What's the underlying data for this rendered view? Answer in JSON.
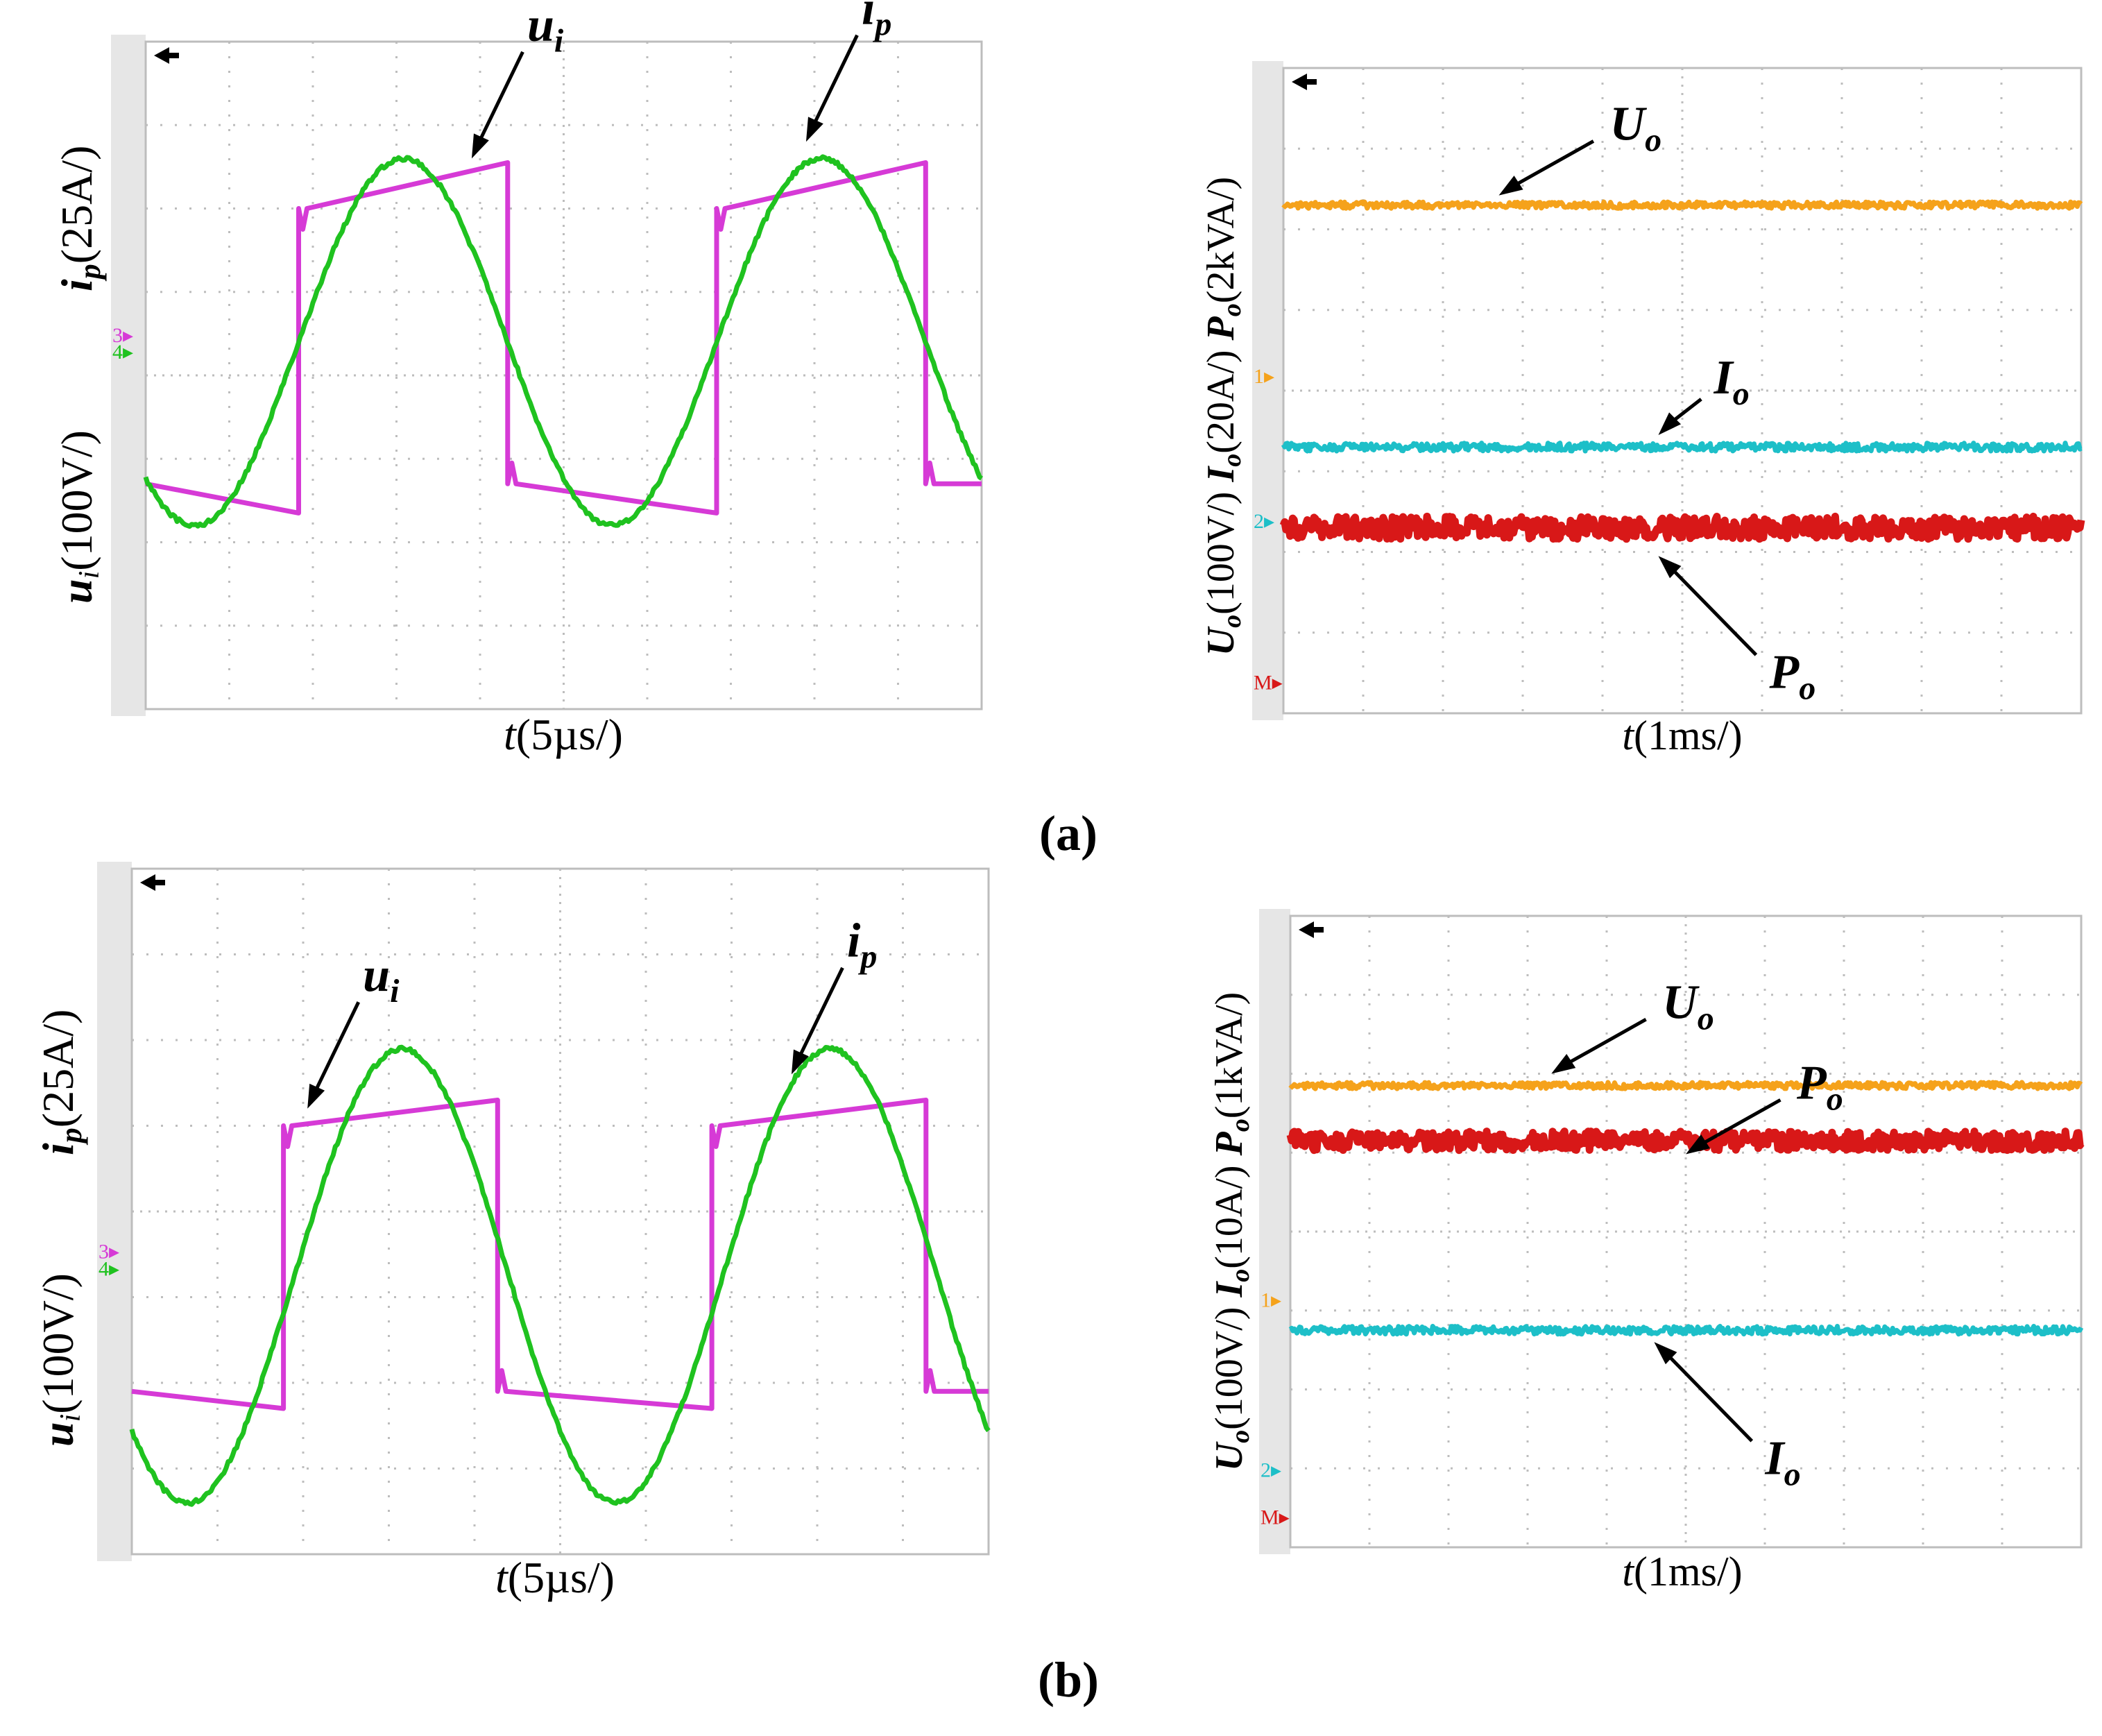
{
  "colors": {
    "magenta": "#d63ad6",
    "green": "#1fc21f",
    "orange": "#f5a21b",
    "cyan": "#1dbfc8",
    "red": "#d81818",
    "grid": "#bdbdbd",
    "strip": "#e6e6e6"
  },
  "figure": {
    "labels": {
      "a": "(a)",
      "b": "(b)"
    }
  },
  "chart_data": [
    {
      "id": "a-left",
      "type": "line",
      "title": "",
      "xlabel": {
        "var": "t",
        "unit": "(5µs/)"
      },
      "ylabel": {
        "lower_var": "u",
        "lower_sub": "i",
        "lower_unit": "(100V/)",
        "upper_var": "i",
        "upper_sub": "p",
        "upper_unit": "(25A/)"
      },
      "xlim": [
        0,
        10
      ],
      "ylim": [
        -4,
        4
      ],
      "divisions": {
        "x": 10,
        "y": 8
      },
      "grid": true,
      "markers": [
        {
          "text": "3",
          "color": "#d63ad6",
          "level": 0.5
        },
        {
          "text": "4",
          "color": "#1fc21f",
          "level": 0.3
        }
      ],
      "series": [
        {
          "name": "u_i",
          "color": "#d63ad6",
          "shape": "square",
          "x": [
            0,
            1.83,
            1.83,
            4.33,
            4.33,
            6.83,
            6.83,
            9.33,
            9.33,
            10
          ],
          "y": [
            -1.3,
            -1.65,
            2.0,
            2.55,
            -1.3,
            -1.65,
            2.0,
            2.55,
            -1.3,
            -1.3
          ]
        },
        {
          "name": "i_p",
          "color": "#1fc21f",
          "shape": "sine",
          "amplitude": 2.2,
          "offset": 0.4,
          "period": 5.0,
          "zero_crossing": 1.83
        }
      ],
      "annotations": [
        {
          "text": "u",
          "sub": "i",
          "target": "u_i",
          "pointer": [
            3.9,
            2.6
          ]
        },
        {
          "text": "i",
          "sub": "p",
          "target": "i_p",
          "pointer": [
            7.9,
            2.8
          ]
        }
      ]
    },
    {
      "id": "a-right",
      "type": "line",
      "title": "",
      "xlabel": {
        "var": "t",
        "unit": "(1ms/)"
      },
      "ylabel": {
        "u1": "U",
        "s1": "o",
        "v1": "(100V/) ",
        "u2": "I",
        "s2": "o",
        "v2": "(20A/) ",
        "u3": "P",
        "s3": "o",
        "v3": "(2kVA/)"
      },
      "xlim": [
        0,
        10
      ],
      "ylim": [
        -4,
        4
      ],
      "divisions": {
        "x": 10,
        "y": 8
      },
      "grid": true,
      "markers": [
        {
          "text": "1",
          "color": "#f5a21b",
          "level": 0.2
        },
        {
          "text": "2",
          "color": "#1dbfc8",
          "level": -1.6
        },
        {
          "text": "M",
          "color": "#d81818",
          "level": -3.6
        }
      ],
      "series": [
        {
          "name": "U_o",
          "color": "#f5a21b",
          "level": 2.3,
          "noise": 0.04
        },
        {
          "name": "I_o",
          "color": "#1dbfc8",
          "level": -0.7,
          "noise": 0.05
        },
        {
          "name": "P_o",
          "color": "#d81818",
          "level": -1.7,
          "noise": 0.14
        }
      ],
      "annotations": [
        {
          "text": "U",
          "sub": "o",
          "target": "U_o",
          "pointer": [
            2.7,
            2.42
          ]
        },
        {
          "text": "I",
          "sub": "o",
          "target": "I_o",
          "pointer": [
            4.7,
            -0.55
          ]
        },
        {
          "text": "P",
          "sub": "o",
          "target": "P_o",
          "pointer": [
            4.7,
            -2.05
          ]
        }
      ]
    },
    {
      "id": "b-left",
      "type": "line",
      "title": "",
      "xlabel": {
        "var": "t",
        "unit": "(5µs/)"
      },
      "ylabel": {
        "lower_var": "u",
        "lower_sub": "i",
        "lower_unit": "(100V/)",
        "upper_var": "i",
        "upper_sub": "p",
        "upper_unit": "(25A/)"
      },
      "xlim": [
        0,
        10
      ],
      "ylim": [
        -4,
        4
      ],
      "divisions": {
        "x": 10,
        "y": 8
      },
      "grid": true,
      "markers": [
        {
          "text": "3",
          "color": "#d63ad6",
          "level": -0.45
        },
        {
          "text": "4",
          "color": "#1fc21f",
          "level": -0.65
        }
      ],
      "series": [
        {
          "name": "u_i",
          "color": "#d63ad6",
          "shape": "square",
          "x": [
            0,
            1.77,
            1.77,
            4.27,
            4.27,
            6.77,
            6.77,
            9.27,
            9.27,
            10
          ],
          "y": [
            -2.1,
            -2.3,
            1.0,
            1.3,
            -2.1,
            -2.3,
            1.0,
            1.3,
            -2.1,
            -2.1
          ]
        },
        {
          "name": "i_p",
          "color": "#1fc21f",
          "shape": "sine",
          "amplitude": 2.65,
          "offset": -0.75,
          "period": 5.0,
          "zero_crossing": 1.9
        }
      ],
      "annotations": [
        {
          "text": "u",
          "sub": "i",
          "target": "u_i",
          "pointer": [
            2.05,
            1.2
          ]
        },
        {
          "text": "i",
          "sub": "p",
          "target": "i_p",
          "pointer": [
            7.7,
            1.6
          ]
        }
      ]
    },
    {
      "id": "b-right",
      "type": "line",
      "title": "",
      "xlabel": {
        "var": "t",
        "unit": "(1ms/)"
      },
      "ylabel": {
        "u1": "U",
        "s1": "o",
        "v1": "(100V/) ",
        "u2": "I",
        "s2": "o",
        "v2": "(10A/) ",
        "u3": "P",
        "s3": "o",
        "v3": "(1kVA/)"
      },
      "xlim": [
        0,
        10
      ],
      "ylim": [
        -4,
        4
      ],
      "divisions": {
        "x": 10,
        "y": 8
      },
      "grid": true,
      "markers": [
        {
          "text": "1",
          "color": "#f5a21b",
          "level": -0.85
        },
        {
          "text": "2",
          "color": "#1dbfc8",
          "level": -3.0
        },
        {
          "text": "M",
          "color": "#d81818",
          "level": -3.6
        }
      ],
      "series": [
        {
          "name": "U_o",
          "color": "#f5a21b",
          "level": 1.85,
          "noise": 0.04
        },
        {
          "name": "P_o",
          "color": "#d81818",
          "level": 1.15,
          "noise": 0.12
        },
        {
          "name": "I_o",
          "color": "#1dbfc8",
          "level": -1.25,
          "noise": 0.05
        }
      ],
      "annotations": [
        {
          "text": "U",
          "sub": "o",
          "target": "U_o",
          "pointer": [
            3.3,
            2.0
          ]
        },
        {
          "text": "P",
          "sub": "o",
          "target": "P_o",
          "pointer": [
            5.0,
            0.98
          ]
        },
        {
          "text": "I",
          "sub": "o",
          "target": "I_o",
          "pointer": [
            4.6,
            -1.4
          ]
        }
      ]
    }
  ]
}
